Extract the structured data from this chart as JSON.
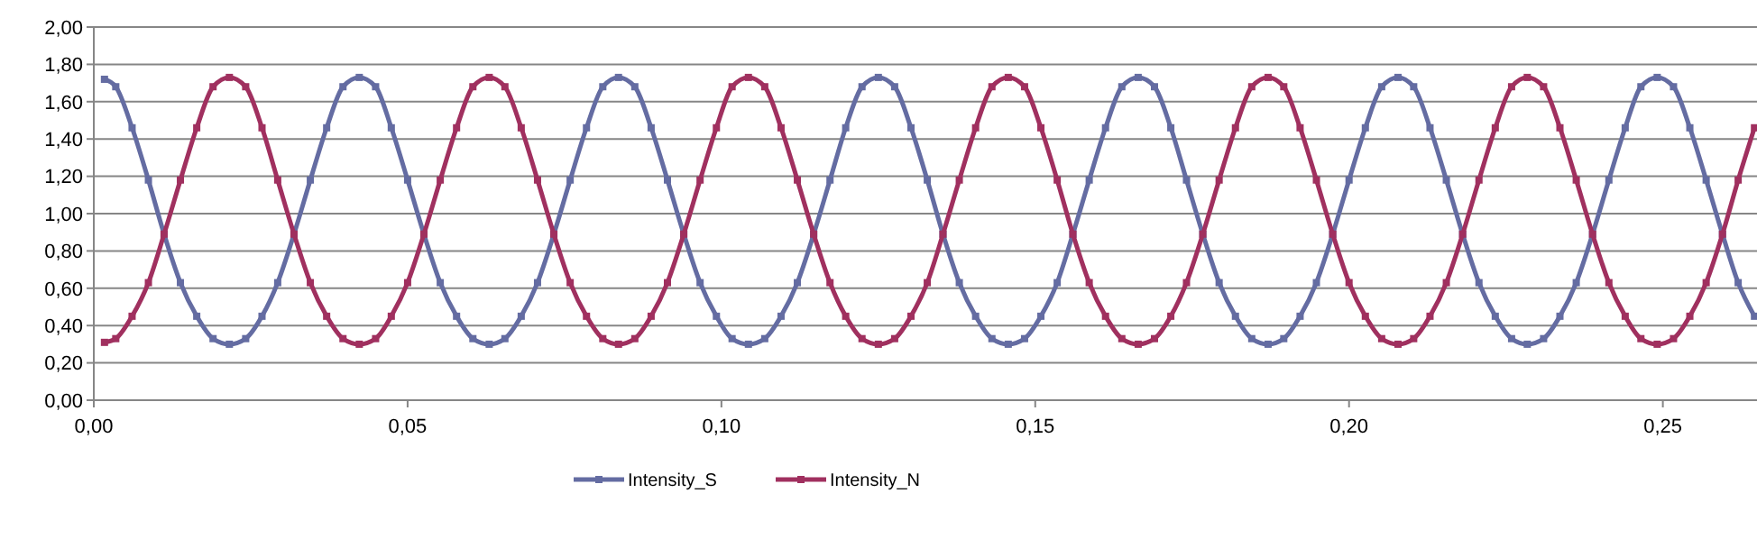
{
  "chart_data": {
    "type": "line",
    "x": [
      0.0017,
      0.0035,
      0.0061,
      0.0087,
      0.0112,
      0.0138,
      0.0164,
      0.019,
      0.0216,
      0.0242,
      0.0268,
      0.0293,
      0.0319,
      0.0345,
      0.0371,
      0.0397,
      0.0423,
      0.0449,
      0.0474,
      0.05,
      0.0526,
      0.0552,
      0.0578,
      0.0604,
      0.063,
      0.0655,
      0.0681,
      0.0707,
      0.0733,
      0.0759,
      0.0785,
      0.0811,
      0.0836,
      0.0862,
      0.0888,
      0.0914,
      0.094,
      0.0966,
      0.0992,
      0.1017,
      0.1043,
      0.1069,
      0.1095,
      0.1121,
      0.1147,
      0.1173,
      0.1198,
      0.1224,
      0.125,
      0.1276,
      0.1302,
      0.1328,
      0.1353,
      0.1379,
      0.1405,
      0.1431,
      0.1457,
      0.1483,
      0.1509,
      0.1535,
      0.156,
      0.1586,
      0.1612,
      0.1638,
      0.1664,
      0.169,
      0.1716,
      0.1741,
      0.1767,
      0.1793,
      0.1819,
      0.1845,
      0.1871,
      0.1896,
      0.1922,
      0.1948,
      0.1974,
      0.2,
      0.2026,
      0.2052,
      0.2078,
      0.2103,
      0.2129,
      0.2155,
      0.2181,
      0.2207,
      0.2233,
      0.2259,
      0.2284,
      0.231,
      0.2336,
      0.2362,
      0.2388,
      0.2414,
      0.244,
      0.2465,
      0.2491,
      0.2517,
      0.2543,
      0.2569,
      0.2595,
      0.262,
      0.2646
    ],
    "series": [
      {
        "name": "Intensity_S",
        "color": "#646ca2",
        "values": [
          1.72,
          1.68,
          1.46,
          1.18,
          0.89,
          0.63,
          0.45,
          0.33,
          0.3,
          0.33,
          0.45,
          0.63,
          0.89,
          1.18,
          1.46,
          1.68,
          1.73,
          1.68,
          1.46,
          1.18,
          0.89,
          0.63,
          0.45,
          0.33,
          0.3,
          0.33,
          0.45,
          0.63,
          0.89,
          1.18,
          1.46,
          1.68,
          1.73,
          1.68,
          1.46,
          1.18,
          0.89,
          0.63,
          0.45,
          0.33,
          0.3,
          0.33,
          0.45,
          0.63,
          0.89,
          1.18,
          1.46,
          1.68,
          1.73,
          1.68,
          1.46,
          1.18,
          0.89,
          0.63,
          0.45,
          0.33,
          0.3,
          0.33,
          0.45,
          0.63,
          0.89,
          1.18,
          1.46,
          1.68,
          1.73,
          1.68,
          1.46,
          1.18,
          0.89,
          0.63,
          0.45,
          0.33,
          0.3,
          0.33,
          0.45,
          0.63,
          0.89,
          1.18,
          1.46,
          1.68,
          1.73,
          1.68,
          1.46,
          1.18,
          0.89,
          0.63,
          0.45,
          0.33,
          0.3,
          0.33,
          0.45,
          0.63,
          0.89,
          1.18,
          1.46,
          1.68,
          1.73,
          1.68,
          1.46,
          1.18,
          0.89,
          0.63,
          0.45
        ]
      },
      {
        "name": "Intensity_N",
        "color": "#a0305f",
        "values": [
          0.31,
          0.33,
          0.45,
          0.63,
          0.89,
          1.18,
          1.46,
          1.68,
          1.73,
          1.68,
          1.46,
          1.18,
          0.89,
          0.63,
          0.45,
          0.33,
          0.3,
          0.33,
          0.45,
          0.63,
          0.89,
          1.18,
          1.46,
          1.68,
          1.73,
          1.68,
          1.46,
          1.18,
          0.89,
          0.63,
          0.45,
          0.33,
          0.3,
          0.33,
          0.45,
          0.63,
          0.89,
          1.18,
          1.46,
          1.68,
          1.73,
          1.68,
          1.46,
          1.18,
          0.89,
          0.63,
          0.45,
          0.33,
          0.3,
          0.33,
          0.45,
          0.63,
          0.89,
          1.18,
          1.46,
          1.68,
          1.73,
          1.68,
          1.46,
          1.18,
          0.89,
          0.63,
          0.45,
          0.33,
          0.3,
          0.33,
          0.45,
          0.63,
          0.89,
          1.18,
          1.46,
          1.68,
          1.73,
          1.68,
          1.46,
          1.18,
          0.89,
          0.63,
          0.45,
          0.33,
          0.3,
          0.33,
          0.45,
          0.63,
          0.89,
          1.18,
          1.46,
          1.68,
          1.73,
          1.68,
          1.46,
          1.18,
          0.89,
          0.63,
          0.45,
          0.33,
          0.3,
          0.33,
          0.45,
          0.63,
          0.89,
          1.18,
          1.46
        ]
      }
    ],
    "xlim": [
      0,
      0.265
    ],
    "xticks": [
      {
        "value": 0,
        "label": "0,00"
      },
      {
        "value": 0.05,
        "label": "0,05"
      },
      {
        "value": 0.1,
        "label": "0,10"
      },
      {
        "value": 0.15,
        "label": "0,15"
      },
      {
        "value": 0.2,
        "label": "0,20"
      },
      {
        "value": 0.25,
        "label": "0,25"
      }
    ],
    "ylim": [
      0,
      2
    ],
    "yticks": [
      {
        "value": 0,
        "label": "0,00"
      },
      {
        "value": 0.2,
        "label": "0,20"
      },
      {
        "value": 0.4,
        "label": "0,40"
      },
      {
        "value": 0.6,
        "label": "0,60"
      },
      {
        "value": 0.8,
        "label": "0,80"
      },
      {
        "value": 1,
        "label": "1,00"
      },
      {
        "value": 1.2,
        "label": "1,20"
      },
      {
        "value": 1.4,
        "label": "1,40"
      },
      {
        "value": 1.6,
        "label": "1,60"
      },
      {
        "value": 1.8,
        "label": "1,80"
      },
      {
        "value": 2,
        "label": "2,00"
      }
    ],
    "grid": "y",
    "legend": "bottom",
    "marker": "square",
    "line_style": "solid"
  }
}
